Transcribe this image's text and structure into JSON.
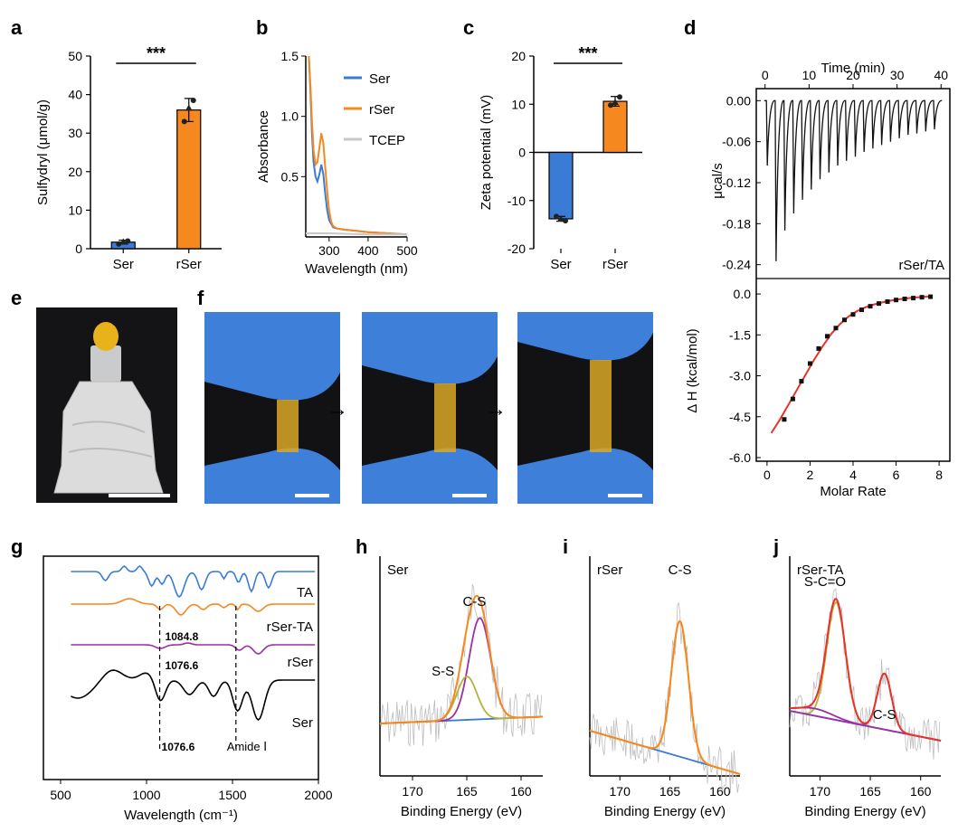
{
  "panel_letters": [
    "a",
    "b",
    "c",
    "d",
    "e",
    "f",
    "g",
    "h",
    "i",
    "j"
  ],
  "colors": {
    "blue": "#3a7bd5",
    "orange": "#f5891f",
    "gray": "#c8c8c8",
    "purple": "#9c2fa8",
    "black": "#000000",
    "olive": "#b5b33a",
    "red": "#e8322a",
    "glove": "#3e7fd9",
    "tube": "#dedede"
  },
  "arrow_glyph": "→",
  "chart_data": [
    {
      "panel": "a",
      "type": "bar",
      "categories": [
        "Ser",
        "rSer"
      ],
      "values": [
        1.7,
        36.0
      ],
      "errors": [
        0.5,
        3.0
      ],
      "points": [
        [
          1.2,
          1.8,
          2.0
        ],
        [
          33.0,
          36.5,
          38.5
        ]
      ],
      "ylabel": "Sulfydryl (μmol/g)",
      "ylim": [
        0,
        50
      ],
      "yticks": [
        0,
        10,
        20,
        30,
        40,
        50
      ],
      "significance": "***",
      "colors": [
        "#3a7bd5",
        "#f5891f"
      ]
    },
    {
      "panel": "b",
      "type": "line",
      "xlabel": "Wavelength (nm)",
      "ylabel": "Absorbance",
      "xlim": [
        240,
        500
      ],
      "ylim": [
        0,
        1.5
      ],
      "xticks": [
        300,
        400,
        500
      ],
      "yticks": [
        0.5,
        1.0,
        1.5
      ],
      "ytick_labels": [
        "0.5",
        "1.0",
        "1.5"
      ],
      "series": [
        {
          "name": "Ser",
          "color": "#3a7bd5",
          "x": [
            248,
            252,
            256,
            260,
            265,
            270,
            275,
            280,
            285,
            290,
            295,
            300,
            310,
            320,
            340,
            370,
            400,
            450,
            500
          ],
          "y": [
            1.5,
            1.2,
            0.85,
            0.62,
            0.5,
            0.46,
            0.52,
            0.6,
            0.52,
            0.36,
            0.22,
            0.14,
            0.08,
            0.07,
            0.06,
            0.05,
            0.04,
            0.03,
            0.02
          ]
        },
        {
          "name": "rSer",
          "color": "#f5891f",
          "x": [
            248,
            252,
            256,
            260,
            265,
            270,
            275,
            280,
            285,
            290,
            295,
            300,
            305,
            310,
            320,
            340,
            370,
            400,
            450,
            500
          ],
          "y": [
            1.5,
            1.25,
            0.95,
            0.72,
            0.6,
            0.62,
            0.74,
            0.86,
            0.78,
            0.58,
            0.38,
            0.22,
            0.13,
            0.09,
            0.07,
            0.06,
            0.05,
            0.04,
            0.03,
            0.02
          ]
        },
        {
          "name": "TCEP",
          "color": "#c8c8c8",
          "x": [
            240,
            300,
            400,
            500
          ],
          "y": [
            0.03,
            0.03,
            0.02,
            0.02
          ]
        }
      ]
    },
    {
      "panel": "c",
      "type": "bar",
      "categories": [
        "Ser",
        "rSer"
      ],
      "values": [
        -13.8,
        10.6
      ],
      "errors": [
        0.5,
        1.0
      ],
      "points": [
        [
          -13.3,
          -13.8,
          -14.2
        ],
        [
          9.8,
          10.4,
          11.5
        ]
      ],
      "ylabel": "Zeta potential (mV)",
      "ylim": [
        -20,
        20
      ],
      "yticks": [
        -20,
        -10,
        0,
        10,
        20
      ],
      "significance": "***",
      "colors": [
        "#3a7bd5",
        "#f5891f"
      ]
    },
    {
      "panel": "d",
      "type": "line",
      "subplots": [
        {
          "name": "raw heat",
          "xlabel": "Time (min)",
          "ylabel": "μcal/s",
          "xlim": [
            -2,
            42
          ],
          "ylim": [
            -0.255,
            0.015
          ],
          "xticks": [
            0,
            10,
            20,
            30,
            40
          ],
          "yticks": [
            0.0,
            -0.06,
            -0.12,
            -0.18,
            -0.24
          ],
          "ytick_labels": [
            "0.00",
            "-0.06",
            "-0.12",
            "-0.18",
            "-0.24"
          ],
          "injection_times": [
            0.3,
            2.3,
            4.3,
            6.3,
            8.3,
            10.3,
            12.3,
            14.3,
            16.3,
            18.3,
            20.3,
            22.3,
            24.3,
            26.3,
            28.3,
            30.3,
            32.3,
            34.3,
            36.3,
            38.3
          ],
          "peak_depths": [
            -0.095,
            -0.235,
            -0.19,
            -0.165,
            -0.145,
            -0.13,
            -0.115,
            -0.105,
            -0.095,
            -0.088,
            -0.082,
            -0.075,
            -0.07,
            -0.065,
            -0.06,
            -0.055,
            -0.05,
            -0.048,
            -0.045,
            -0.042
          ],
          "annotation": "rSer/TA"
        },
        {
          "name": "integrated",
          "xlabel": "Molar Rate",
          "ylabel": "Δ H (kcal/mol)",
          "xlim": [
            -0.5,
            8.5
          ],
          "ylim": [
            -6.0,
            0.5
          ],
          "xticks": [
            0,
            2,
            4,
            6,
            8
          ],
          "yticks": [
            0.0,
            -1.5,
            -3.0,
            -4.5,
            -6.0
          ],
          "ytick_labels": [
            "0.0",
            "-1.5",
            "-3.0",
            "-4.5",
            "-6.0"
          ],
          "points_x": [
            0.8,
            1.2,
            1.6,
            2.0,
            2.4,
            2.8,
            3.2,
            3.6,
            4.0,
            4.4,
            4.8,
            5.2,
            5.6,
            6.0,
            6.4,
            6.8,
            7.2,
            7.6
          ],
          "points_y": [
            -4.6,
            -3.85,
            -3.2,
            -2.55,
            -2.0,
            -1.55,
            -1.25,
            -0.95,
            -0.75,
            -0.58,
            -0.45,
            -0.35,
            -0.28,
            -0.22,
            -0.18,
            -0.15,
            -0.12,
            -0.1
          ],
          "fit_x": [
            0.2,
            0.6,
            1.0,
            1.4,
            1.8,
            2.2,
            2.6,
            3.0,
            3.4,
            3.8,
            4.2,
            4.6,
            5.0,
            5.5,
            6.0,
            6.5,
            7.0,
            7.6
          ],
          "fit_y": [
            -5.1,
            -4.6,
            -4.05,
            -3.5,
            -2.95,
            -2.4,
            -1.9,
            -1.45,
            -1.1,
            -0.82,
            -0.62,
            -0.48,
            -0.38,
            -0.28,
            -0.21,
            -0.16,
            -0.12,
            -0.09
          ],
          "fit_color": "#e8322a"
        }
      ]
    },
    {
      "panel": "g",
      "type": "line",
      "xlabel": "Wavelength (cm⁻¹)",
      "xlim": [
        400,
        2000
      ],
      "xticks": [
        500,
        1000,
        1500,
        2000
      ],
      "series_labels": [
        "TA",
        "rSer-TA",
        "rSer",
        "Ser"
      ],
      "series_colors": [
        "#3a7bd5",
        "#f5891f",
        "#9c2fa8",
        "#000000"
      ],
      "annotations": [
        "1084.8",
        "1076.6",
        "1076.6",
        "Amide Ⅰ"
      ],
      "marker_lines": [
        1076.6,
        1520
      ]
    },
    {
      "panel": "h",
      "type": "line",
      "xlabel": "Binding Energy (eV)",
      "xlim": [
        173,
        158
      ],
      "xticks": [
        170,
        165,
        160
      ],
      "sample": "Ser",
      "peaks": [
        "C-S",
        "S-S"
      ],
      "peak_centers": [
        163.8,
        165.0
      ]
    },
    {
      "panel": "i",
      "type": "line",
      "xlabel": "Binding Energy (eV)",
      "xlim": [
        173,
        158
      ],
      "xticks": [
        170,
        165,
        160
      ],
      "sample": "rSer",
      "peaks": [
        "C-S"
      ],
      "peak_centers": [
        164.0
      ]
    },
    {
      "panel": "j",
      "type": "line",
      "xlabel": "Binding Energy (eV)",
      "xlim": [
        173,
        158
      ],
      "xticks": [
        170,
        165,
        160
      ],
      "sample": "rSer-TA",
      "peaks": [
        "S-C=O",
        "C-S"
      ],
      "peak_centers": [
        168.4,
        163.6
      ]
    }
  ]
}
